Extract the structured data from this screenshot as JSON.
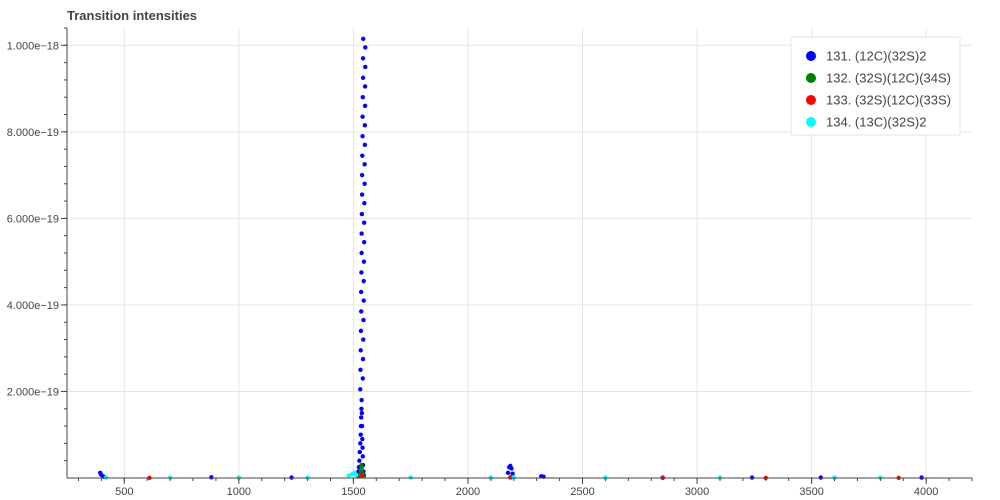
{
  "chart_data": {
    "type": "scatter",
    "title": "Transition intensities",
    "xlabel": "",
    "ylabel": "",
    "xlim": [
      250,
      4200
    ],
    "ylim": [
      0,
      1.04e-18
    ],
    "x_ticks": [
      500,
      1000,
      1500,
      2000,
      2500,
      3000,
      3500,
      4000
    ],
    "x_tick_labels": [
      "500",
      "1000",
      "1500",
      "2000",
      "2500",
      "3000",
      "3500",
      "4000"
    ],
    "y_ticks": [
      2e-19,
      4e-19,
      6e-19,
      8e-19,
      1e-18
    ],
    "y_tick_labels": [
      "2.000e−19",
      "4.000e−19",
      "6.000e−19",
      "8.000e−19",
      "1.000e−18"
    ],
    "grid": true,
    "legend_position": "top-right",
    "series": [
      {
        "name": "131. (12C)(32S)2",
        "color": "#0000ff",
        "points": [
          [
            395,
            1.2e-20
          ],
          [
            400,
            7e-21
          ],
          [
            410,
            3e-21
          ],
          [
            880,
            1.5e-21
          ],
          [
            1230,
            1e-21
          ],
          [
            1520,
            5e-21
          ],
          [
            1522,
            1.5e-20
          ],
          [
            1524,
            2.5e-20
          ],
          [
            1526,
            4e-20
          ],
          [
            1528,
            6e-20
          ],
          [
            1530,
            8e-20
          ],
          [
            1532,
            1e-19
          ],
          [
            1533,
            1.2e-19
          ],
          [
            1534,
            1.4e-19
          ],
          [
            1535,
            1.6e-19
          ],
          [
            1536,
            1.8e-19
          ],
          [
            1537,
            1.5e-19
          ],
          [
            1538,
            1.2e-19
          ],
          [
            1539,
            9e-20
          ],
          [
            1540,
            7e-20
          ],
          [
            1541,
            5e-20
          ],
          [
            1542,
            3e-20
          ],
          [
            1544,
            1.5e-20
          ],
          [
            1546,
            6e-21
          ],
          [
            1530,
            2.05e-19
          ],
          [
            1531,
            2.5e-19
          ],
          [
            1532,
            2.95e-19
          ],
          [
            1533,
            3.4e-19
          ],
          [
            1534,
            3.85e-19
          ],
          [
            1534,
            4.3e-19
          ],
          [
            1535,
            4.75e-19
          ],
          [
            1536,
            5.2e-19
          ],
          [
            1536,
            5.65e-19
          ],
          [
            1537,
            6.1e-19
          ],
          [
            1538,
            6.55e-19
          ],
          [
            1538,
            7e-19
          ],
          [
            1539,
            7.45e-19
          ],
          [
            1540,
            7.9e-19
          ],
          [
            1540,
            8.35e-19
          ],
          [
            1541,
            8.8e-19
          ],
          [
            1542,
            9.25e-19
          ],
          [
            1542,
            9.7e-19
          ],
          [
            1543,
            1.015e-18
          ],
          [
            1541,
            2.3e-19
          ],
          [
            1542,
            2.75e-19
          ],
          [
            1543,
            3.2e-19
          ],
          [
            1544,
            3.65e-19
          ],
          [
            1545,
            4.1e-19
          ],
          [
            1545,
            4.55e-19
          ],
          [
            1546,
            5e-19
          ],
          [
            1547,
            5.45e-19
          ],
          [
            1547,
            5.9e-19
          ],
          [
            1548,
            6.35e-19
          ],
          [
            1549,
            6.8e-19
          ],
          [
            1549,
            7.25e-19
          ],
          [
            1550,
            7.7e-19
          ],
          [
            1550,
            8.15e-19
          ],
          [
            1551,
            8.6e-19
          ],
          [
            1551,
            9.05e-19
          ],
          [
            1552,
            9.5e-19
          ],
          [
            1552,
            9.95e-19
          ],
          [
            2175,
            1.2e-20
          ],
          [
            2180,
            2.5e-20
          ],
          [
            2185,
            2.8e-20
          ],
          [
            2190,
            2.2e-20
          ],
          [
            2195,
            1e-20
          ],
          [
            2320,
            4e-21
          ],
          [
            2330,
            3e-21
          ],
          [
            2850,
            1e-21
          ],
          [
            3240,
            1e-21
          ],
          [
            3540,
            1e-21
          ],
          [
            3980,
            1e-21
          ]
        ]
      },
      {
        "name": "132. (32S)(12C)(34S)",
        "color": "#008000",
        "points": [
          [
            1528,
            5e-21
          ],
          [
            1532,
            1.5e-20
          ],
          [
            1535,
            3e-20
          ],
          [
            1537,
            2.5e-20
          ],
          [
            1540,
            1.2e-20
          ],
          [
            1544,
            4e-21
          ],
          [
            2185,
            1.5e-21
          ],
          [
            2190,
            2e-21
          ]
        ]
      },
      {
        "name": "133. (32S)(12C)(33S)",
        "color": "#ff0000",
        "points": [
          [
            610,
            3e-22
          ],
          [
            1534,
            6e-21
          ],
          [
            1537,
            4e-21
          ],
          [
            2185,
            1e-21
          ],
          [
            2850,
            2e-22
          ],
          [
            3300,
            2e-22
          ],
          [
            3880,
            3e-22
          ]
        ]
      },
      {
        "name": "134. (13C)(32S)2",
        "color": "#00ffff",
        "points": [
          [
            420,
            1e-21
          ],
          [
            700,
            1e-21
          ],
          [
            1000,
            1e-21
          ],
          [
            1300,
            1e-21
          ],
          [
            1480,
            6e-21
          ],
          [
            1495,
            9e-21
          ],
          [
            1505,
            1.2e-20
          ],
          [
            1512,
            7e-21
          ],
          [
            1750,
            1e-21
          ],
          [
            2100,
            1e-21
          ],
          [
            2200,
            1.5e-21
          ],
          [
            2600,
            1e-21
          ],
          [
            3100,
            1e-21
          ],
          [
            3600,
            1e-21
          ],
          [
            3800,
            1e-21
          ]
        ]
      }
    ]
  }
}
